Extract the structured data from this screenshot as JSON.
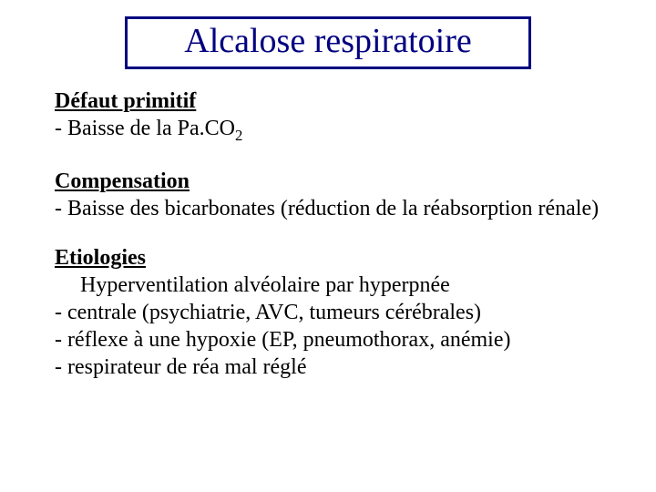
{
  "title": "Alcalose respiratoire",
  "section1": {
    "heading": "Défaut primitif",
    "line1_prefix": "- Baisse de la Pa.CO",
    "line1_sub": "2"
  },
  "section2": {
    "heading": "Compensation",
    "line1": "- Baisse des bicarbonates (réduction de la réabsorption rénale)"
  },
  "section3": {
    "heading": "Etiologies",
    "line1": "Hyperventilation alvéolaire par hyperpnée",
    "line2": "-   centrale (psychiatrie, AVC, tumeurs cérébrales)",
    "line3": "-   réflexe à une hypoxie (EP, pneumothorax, anémie)",
    "line4": "-   respirateur de réa mal réglé"
  },
  "colors": {
    "title_color": "#000080",
    "border_color": "#000080",
    "text_color": "#000000",
    "background": "#ffffff"
  },
  "typography": {
    "title_fontsize": 38,
    "body_fontsize": 24,
    "font_family": "Times New Roman"
  }
}
